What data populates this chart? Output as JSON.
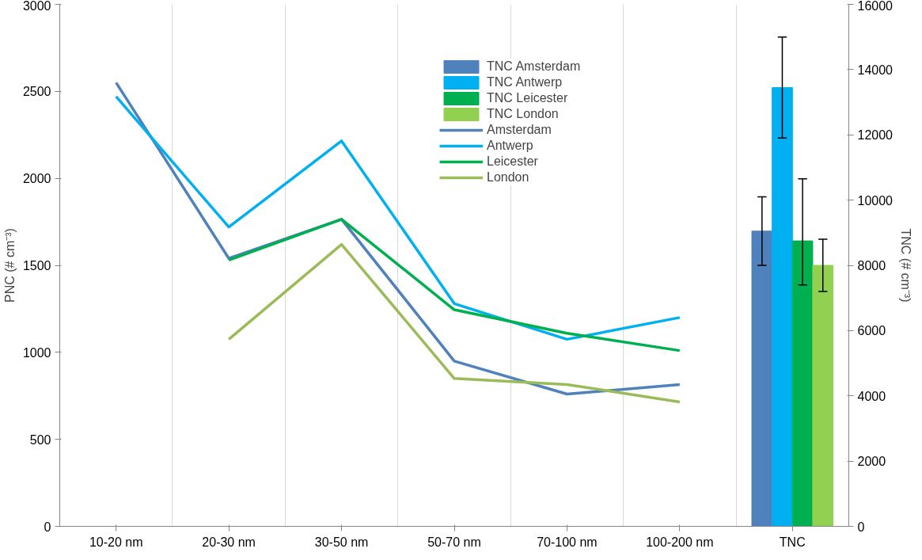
{
  "chart_data": {
    "type": "line",
    "categories": [
      "10-20 nm",
      "20-30 nm",
      "30-50 nm",
      "50-70 nm",
      "70-100 nm",
      "100-200 nm",
      "TNC"
    ],
    "ylabel": "PNC (# cm⁻³)",
    "y2label": "TNC (# cm⁻³)",
    "ylim": [
      0,
      3000
    ],
    "yticks": [
      0,
      500,
      1000,
      1500,
      2000,
      2500,
      3000
    ],
    "y2lim": [
      0,
      16000
    ],
    "y2ticks": [
      0,
      2000,
      4000,
      6000,
      8000,
      10000,
      12000,
      14000,
      16000
    ],
    "grid": "x",
    "legend": "top right",
    "series": [
      {
        "name": "TNC Amsterdam",
        "type": "bar",
        "axis": "y2",
        "color": "#4f81bd",
        "values": [
          null,
          null,
          null,
          null,
          null,
          null,
          9050
        ],
        "errors": [
          null,
          null,
          null,
          null,
          null,
          null,
          [
            8000,
            10100
          ]
        ]
      },
      {
        "name": "TNC Antwerp",
        "type": "bar",
        "axis": "y2",
        "color": "#00b0f0",
        "values": [
          null,
          null,
          null,
          null,
          null,
          null,
          13450
        ],
        "errors": [
          null,
          null,
          null,
          null,
          null,
          null,
          [
            11900,
            15000
          ]
        ]
      },
      {
        "name": "TNC Leicester",
        "type": "bar",
        "axis": "y2",
        "color": "#00b050",
        "values": [
          null,
          null,
          null,
          null,
          null,
          null,
          8750
        ],
        "errors": [
          null,
          null,
          null,
          null,
          null,
          null,
          [
            7400,
            10650
          ]
        ]
      },
      {
        "name": "TNC London",
        "type": "bar",
        "axis": "y2",
        "color": "#92d050",
        "values": [
          null,
          null,
          null,
          null,
          null,
          null,
          8000
        ],
        "errors": [
          null,
          null,
          null,
          null,
          null,
          null,
          [
            7200,
            8800
          ]
        ]
      },
      {
        "name": "Amsterdam",
        "color": "#4f81bd",
        "values": [
          2550,
          1540,
          1765,
          950,
          760,
          815,
          null
        ]
      },
      {
        "name": "Antwerp",
        "color": "#00b0f0",
        "values": [
          2470,
          1720,
          2215,
          1280,
          1075,
          1200,
          null
        ]
      },
      {
        "name": "Leicester",
        "color": "#00b050",
        "values": [
          null,
          1530,
          1765,
          1245,
          1110,
          1010,
          null
        ]
      },
      {
        "name": "London",
        "color": "#9bbb59",
        "values": [
          null,
          1075,
          1620,
          850,
          815,
          715,
          null
        ]
      }
    ]
  }
}
